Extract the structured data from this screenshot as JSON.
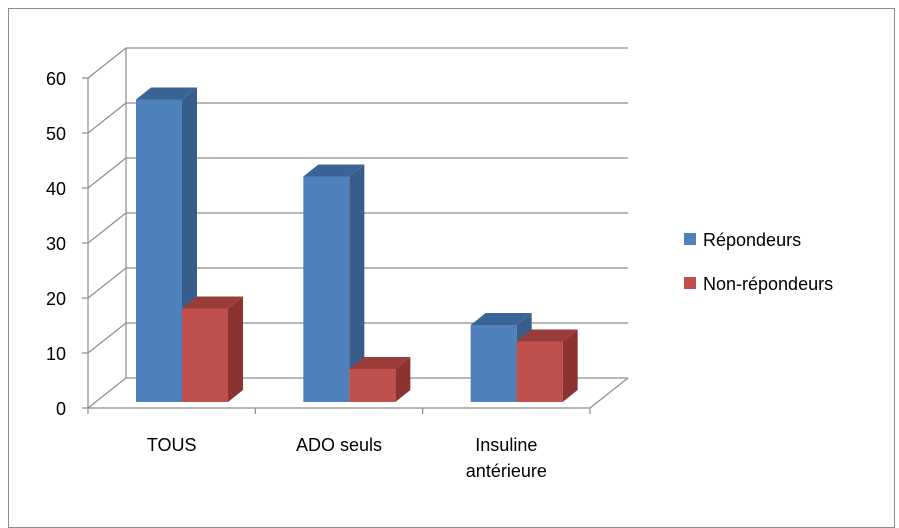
{
  "chart_data": {
    "type": "bar",
    "style": "3d-clustered-column",
    "categories": [
      [
        "TOUS"
      ],
      [
        "ADO seuls"
      ],
      [
        "Insuline",
        "antérieure"
      ]
    ],
    "series": [
      {
        "name": "Répondeurs",
        "color": "#4F81BD",
        "side": "#385D8A",
        "top": "#3A6496",
        "values": [
          55,
          41,
          14
        ]
      },
      {
        "name": "Non-répondeurs",
        "color": "#C0504D",
        "side": "#8C3331",
        "top": "#9A3C39",
        "values": [
          17,
          6,
          11
        ]
      }
    ],
    "ylim": [
      0,
      60
    ],
    "yticks": [
      0,
      10,
      20,
      30,
      40,
      50,
      60
    ],
    "grid": true,
    "legend": "right"
  }
}
